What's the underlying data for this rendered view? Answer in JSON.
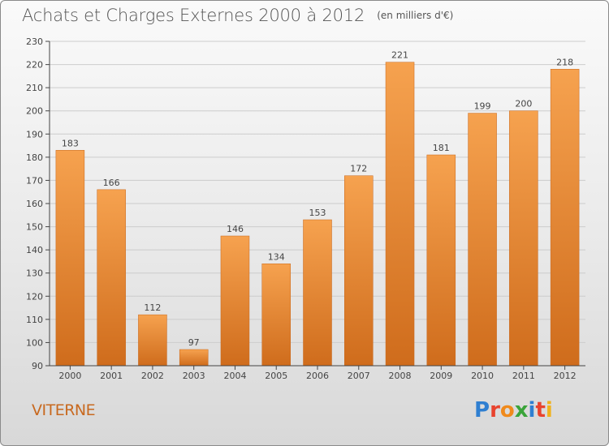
{
  "header": {
    "title": "Achats et Charges Externes 2000 à 2012",
    "subtitle": "(en milliers d'€)"
  },
  "footer": {
    "place": "VITERNE",
    "brand": "Proxiti"
  },
  "colors": {
    "bar_top": "#f6a24f",
    "bar_bottom": "#cf6c1c",
    "axis": "#444444",
    "grid": "#cccccc",
    "place_text": "#c8691f",
    "brand_letters": [
      "#2f7fd1",
      "#e8432e",
      "#f08a1c",
      "#3aa43a",
      "#2f7fd1",
      "#e8432e",
      "#f0b21c"
    ]
  },
  "chart_data": {
    "type": "bar",
    "title": "Achats et Charges Externes 2000 à 2012",
    "subtitle": "(en milliers d'€)",
    "xlabel": "",
    "ylabel": "",
    "categories": [
      "2000",
      "2001",
      "2002",
      "2003",
      "2004",
      "2005",
      "2006",
      "2007",
      "2008",
      "2009",
      "2010",
      "2011",
      "2012"
    ],
    "values": [
      183,
      166,
      112,
      97,
      146,
      134,
      153,
      172,
      221,
      181,
      199,
      200,
      218
    ],
    "ylim": [
      90,
      230
    ],
    "yticks": [
      90,
      100,
      110,
      120,
      130,
      140,
      150,
      160,
      170,
      180,
      190,
      200,
      210,
      220,
      230
    ],
    "grid": "horizontal",
    "legend": "none"
  }
}
